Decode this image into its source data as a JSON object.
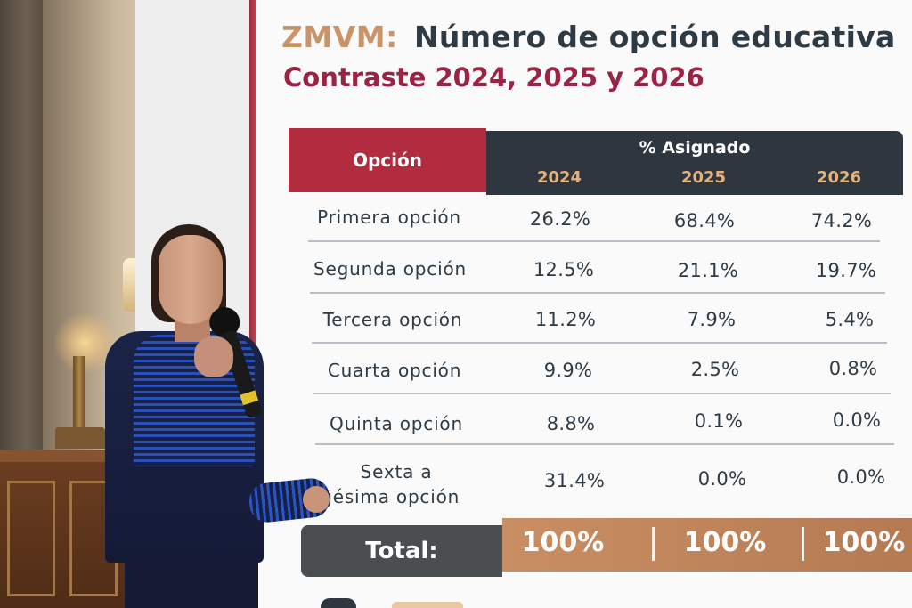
{
  "slide": {
    "title_prefix": "ZMVM:",
    "title_main": "Número de opción educativa",
    "subtitle": "Contraste 2024, 2025 y 2026"
  },
  "table": {
    "header_option": "Opción",
    "header_assigned": "% Asignado",
    "years": [
      "2024",
      "2025",
      "2026"
    ],
    "rows": [
      {
        "label": "Primera opción",
        "values": [
          "26.2%",
          "68.4%",
          "74.2%"
        ]
      },
      {
        "label": "Segunda opción",
        "values": [
          "12.5%",
          "21.1%",
          "19.7%"
        ]
      },
      {
        "label": "Tercera opción",
        "values": [
          "11.2%",
          "7.9%",
          "5.4%"
        ]
      },
      {
        "label": "Cuarta opción",
        "values": [
          "9.9%",
          "2.5%",
          "0.8%"
        ]
      },
      {
        "label": "Quinta opción",
        "values": [
          "8.8%",
          "0.1%",
          "0.0%"
        ]
      },
      {
        "label_line1": "Sexta a",
        "label_line2": "igésima opción",
        "values": [
          "31.4%",
          "0.0%",
          "0.0%"
        ]
      }
    ],
    "total_label": "Total:",
    "totals": [
      "100%",
      "100%",
      "100%"
    ]
  },
  "colors": {
    "accent_red": "#b32b3e",
    "header_dark": "#2e3740",
    "year_gold": "#e3b27c",
    "title_tan": "#c89468",
    "subtitle_maroon": "#9b2343",
    "total_bar": "#c98e63"
  }
}
